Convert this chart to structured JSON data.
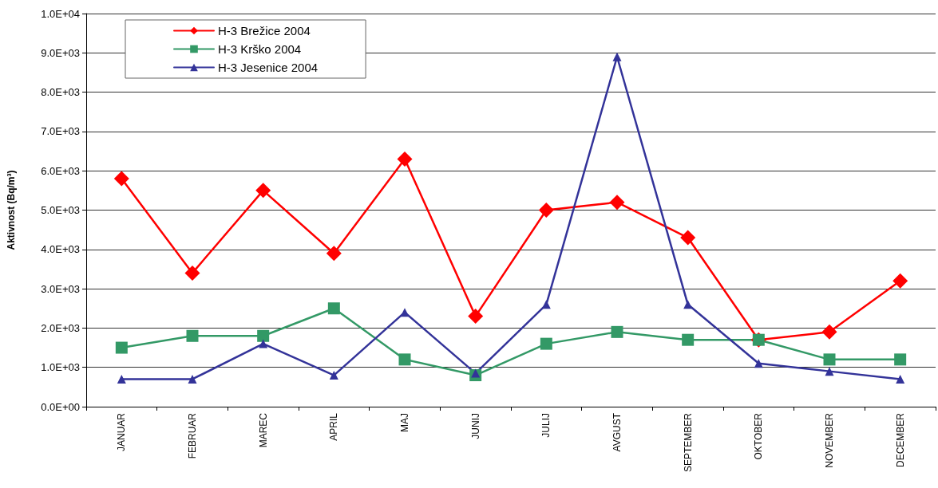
{
  "chart_data": {
    "type": "line",
    "ylabel": "Aktivnost (Bq/m³)",
    "categories": [
      "JANUAR",
      "FEBRUAR",
      "MAREC",
      "APRIL",
      "MAJ",
      "JUNIJ",
      "JULIJ",
      "AVGUST",
      "SEPTEMBER",
      "OKTOBER",
      "NOVEMBER",
      "DECEMBER"
    ],
    "series": [
      {
        "name": "H-3 Brežice 2004",
        "color": "#ff0000",
        "marker": "diamond",
        "values": [
          5800,
          3400,
          5500,
          3900,
          6300,
          2300,
          5000,
          5200,
          4300,
          1700,
          1900,
          3200
        ]
      },
      {
        "name": "H-3 Krško 2004",
        "color": "#339966",
        "marker": "square",
        "values": [
          1500,
          1800,
          1800,
          2500,
          1200,
          800,
          1600,
          1900,
          1700,
          1700,
          1200,
          1200
        ]
      },
      {
        "name": "H-3 Jesenice 2004",
        "color": "#333399",
        "marker": "triangle",
        "values": [
          700,
          700,
          1600,
          800,
          2400,
          850,
          2600,
          8900,
          2600,
          1100,
          900,
          700
        ]
      }
    ],
    "ylim": [
      0,
      10000
    ],
    "yticks": [
      {
        "value": 0,
        "label": "0.0E+00"
      },
      {
        "value": 1000,
        "label": "1.0E+03"
      },
      {
        "value": 2000,
        "label": "2.0E+03"
      },
      {
        "value": 3000,
        "label": "3.0E+03"
      },
      {
        "value": 4000,
        "label": "4.0E+03"
      },
      {
        "value": 5000,
        "label": "5.0E+03"
      },
      {
        "value": 6000,
        "label": "6.0E+03"
      },
      {
        "value": 7000,
        "label": "7.0E+03"
      },
      {
        "value": 8000,
        "label": "8.0E+03"
      },
      {
        "value": 9000,
        "label": "9.0E+03"
      },
      {
        "value": 10000,
        "label": "1.0E+04"
      }
    ],
    "grid": "y",
    "legend": "top left",
    "line_style": "solid"
  }
}
